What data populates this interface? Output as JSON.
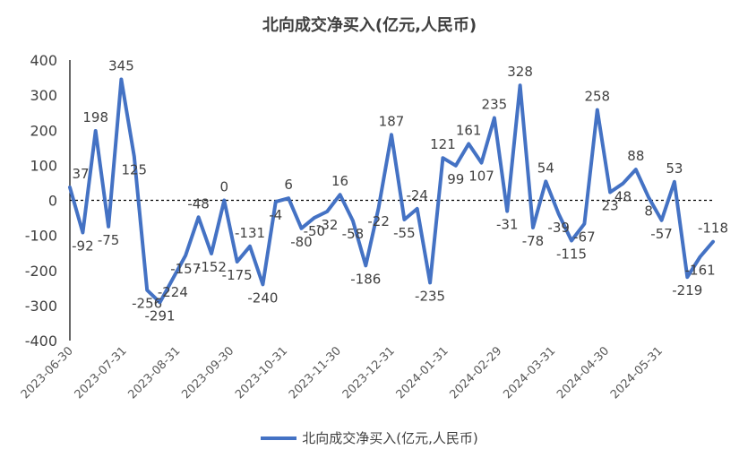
{
  "chart_data": {
    "type": "line",
    "title": "北向成交净买入(亿元,人民币)",
    "xlabel": "",
    "ylabel": "",
    "ylim": [
      -400,
      400
    ],
    "yticks": [
      400,
      300,
      200,
      100,
      0,
      -100,
      -200,
      -300,
      -400
    ],
    "x_tick_labels": [
      "2023-06-30",
      "2023-07-31",
      "2023-08-31",
      "2023-09-30",
      "2023-10-31",
      "2023-11-30",
      "2023-12-31",
      "2024-01-31",
      "2024-02-29",
      "2024-03-31",
      "2024-04-30",
      "2024-05-31"
    ],
    "zero_line": "dashed",
    "grid": false,
    "legend_position": "bottom",
    "series": [
      {
        "name": "北向成交净买入(亿元,人民币)",
        "color": "#4472C4",
        "values": [
          37,
          -92,
          198,
          -75,
          345,
          125,
          -256,
          -291,
          -224,
          -157,
          -48,
          -152,
          0,
          -175,
          -131,
          -240,
          -4,
          6,
          -80,
          -50,
          -32,
          16,
          -58,
          -186,
          -22,
          187,
          -55,
          -24,
          -235,
          121,
          99,
          161,
          107,
          235,
          -31,
          328,
          -78,
          54,
          -39,
          -115,
          -67,
          258,
          23,
          48,
          88,
          8,
          -57,
          53,
          -219,
          -161,
          -118
        ],
        "labels": [
          "37",
          "-92",
          "198",
          "-75",
          "345",
          "125",
          "-256",
          "-291",
          "-224",
          "-157",
          "-48",
          "-152",
          "0",
          "-175",
          "-131",
          "-240",
          "-4",
          "6",
          "-80",
          "-50",
          "-32",
          "16",
          "-58",
          "-186",
          "-22",
          "187",
          "-55",
          "-24",
          "-235",
          "121",
          "99",
          "161",
          "107",
          "235",
          "-31",
          "328",
          "-78",
          "54",
          "-39",
          "-115",
          "-67",
          "258",
          "23",
          "48",
          "88",
          "8",
          "-57",
          "53",
          "-219",
          "-161",
          "-118"
        ]
      }
    ]
  }
}
